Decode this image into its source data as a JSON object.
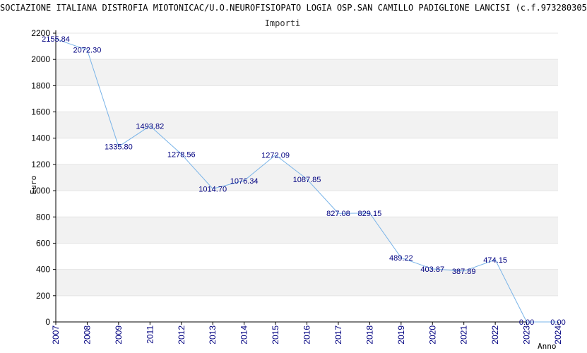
{
  "chart_data": {
    "type": "line",
    "title": "SOCIAZIONE ITALIANA DISTROFIA MIOTONICAC/U.O.NEUROFISIOPATO LOGIA OSP.SAN CAMILLO PADIGLIONE LANCISI (c.f.973280305",
    "subtitle": "Importi",
    "xlabel": "Anno",
    "ylabel": "Euro",
    "ylim": [
      0,
      2200
    ],
    "yticks": [
      0,
      200,
      400,
      600,
      800,
      1000,
      1200,
      1400,
      1600,
      1800,
      2000,
      2200
    ],
    "grid": true,
    "x": [
      "2007",
      "2008",
      "2009",
      "2011",
      "2012",
      "2013",
      "2014",
      "2015",
      "2016",
      "2017",
      "2018",
      "2019",
      "2020",
      "2021",
      "2022",
      "2023",
      "2024"
    ],
    "values": [
      2155.84,
      2072.3,
      1335.8,
      1493.82,
      1278.56,
      1014.7,
      1076.34,
      1272.09,
      1087.85,
      827.08,
      829.15,
      489.22,
      403.87,
      387.89,
      474.15,
      0.0,
      0.0
    ],
    "value_labels": [
      "2155.84",
      "2072.30",
      "1335.80",
      "1493.82",
      "1278.56",
      "1014.70",
      "1076.34",
      "1272.09",
      "1087.85",
      "827.08",
      "829.15",
      "489.22",
      "403.87",
      "387.89",
      "474.15",
      "0.00",
      "0.00"
    ],
    "colors": {
      "line": "#7ab4e8",
      "band": "#f2f2f2",
      "labels": "#000080",
      "axis": "#000000"
    }
  }
}
